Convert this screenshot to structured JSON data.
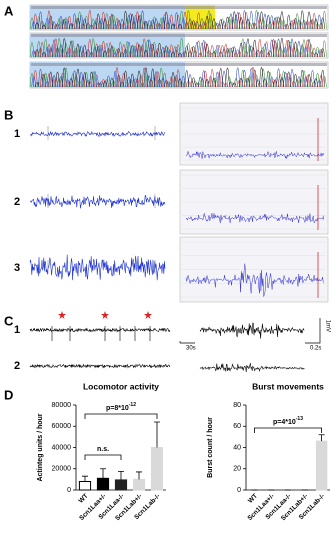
{
  "panel_labels": [
    "A",
    "B",
    "C",
    "D"
  ],
  "panel_b": {
    "trace_labels": [
      "1",
      "2",
      "3"
    ]
  },
  "panel_c": {
    "trace_labels": [
      "1",
      "2"
    ],
    "scale_labels": [
      "30s",
      "0.2s",
      "1mV"
    ]
  },
  "chart_data": [
    {
      "type": "bar",
      "title": "Locomotor activity",
      "ylabel": "Actinteg units / hour",
      "categories": [
        "WT",
        "Scn1Laa+/-",
        "Scn1Laa-/-",
        "Scn1Lab+/-",
        "Scn1Lab-/-"
      ],
      "values": [
        8000,
        11000,
        9500,
        10000,
        40000
      ],
      "errors": [
        5000,
        9000,
        8000,
        7000,
        24000
      ],
      "colors": [
        "#ffffff",
        "#000000",
        "#222222",
        "#d9d9d9",
        "#d9d9d9"
      ],
      "ylim": [
        0,
        80000
      ],
      "yticks": [
        0,
        20000,
        40000,
        60000,
        80000
      ],
      "annotations": [
        {
          "text": "p=8*10",
          "exponent": "-12"
        },
        {
          "text": "n.s."
        }
      ]
    },
    {
      "type": "bar",
      "title": "Burst movements",
      "ylabel": "Burst count / hour",
      "categories": [
        "WT",
        "Scn1Laa+/-",
        "Scn1Laa-/-",
        "Scn1Lab+/-",
        "Scn1Lab-/-"
      ],
      "values": [
        0,
        0,
        0,
        0,
        46
      ],
      "errors": [
        0,
        0,
        0,
        0,
        6
      ],
      "colors": [
        "#ffffff",
        "#000000",
        "#222222",
        "#d9d9d9",
        "#d9d9d9"
      ],
      "ylim": [
        0,
        80
      ],
      "yticks": [
        0,
        20,
        40,
        60,
        80
      ],
      "annotations": [
        {
          "text": "p=4*10",
          "exponent": "-13"
        }
      ]
    }
  ]
}
